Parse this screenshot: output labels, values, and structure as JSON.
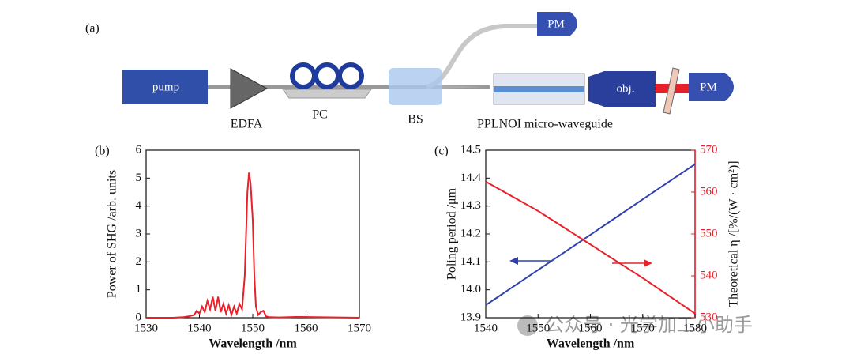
{
  "diagram": {
    "label": "(a)",
    "pump": "pump",
    "edfa": "EDFA",
    "pc": "PC",
    "bs": "BS",
    "waveguide": "PPLNOI micro-waveguide",
    "pm_top": "PM",
    "objective": "obj.",
    "pm_right": "PM"
  },
  "chart_data": [
    {
      "type": "line",
      "label": "(b)",
      "xlabel": "Wavelength /nm",
      "ylabel": "Power of SHG /arb. units",
      "x": [
        1530,
        1535,
        1537,
        1538,
        1539,
        1539.5,
        1540,
        1540.5,
        1541,
        1541.5,
        1542,
        1542.5,
        1543,
        1543.5,
        1544,
        1544.5,
        1545,
        1545.5,
        1546,
        1546.5,
        1547,
        1547.5,
        1548,
        1548.5,
        1549,
        1549.3,
        1549.6,
        1550,
        1550.3,
        1550.6,
        1551,
        1551.5,
        1552,
        1552.5,
        1553,
        1555,
        1558,
        1570
      ],
      "series": [
        {
          "color": "#e8202a",
          "values": [
            0,
            0,
            0.02,
            0.05,
            0.1,
            0.25,
            0.15,
            0.4,
            0.2,
            0.6,
            0.3,
            0.75,
            0.25,
            0.75,
            0.2,
            0.5,
            0.15,
            0.45,
            0.1,
            0.4,
            0.15,
            0.5,
            0.3,
            1.5,
            4.5,
            5.2,
            4.8,
            3.5,
            1.5,
            0.4,
            0.1,
            0.2,
            0.25,
            0.05,
            0.02,
            0.01,
            0.03,
            0
          ]
        }
      ],
      "xlim": [
        1530,
        1570
      ],
      "xticks": [
        1530,
        1540,
        1550,
        1560,
        1570
      ],
      "ylim": [
        0,
        6
      ],
      "yticks": [
        0,
        1,
        2,
        3,
        4,
        5,
        6
      ]
    },
    {
      "type": "line",
      "label": "(c)",
      "xlabel": "Wavelength /nm",
      "ylabel": "Poling period /μm",
      "y2label": "Theoretical η /[%/(W · cm²)]",
      "x": [
        1540,
        1550,
        1560,
        1570,
        1580
      ],
      "series": [
        {
          "color": "#3040b0",
          "values": [
            13.945,
            14.071,
            14.197,
            14.324,
            14.45
          ]
        },
        {
          "color": "#e8202a",
          "axis": "y2",
          "values": [
            562.5,
            555.5,
            547.5,
            539.5,
            531
          ]
        }
      ],
      "xlim": [
        1540,
        1580
      ],
      "xticks": [
        1540,
        1550,
        1560,
        1570,
        1580
      ],
      "ylim": [
        13.9,
        14.5
      ],
      "yticks": [
        13.9,
        {
          "value": 14,
          "label": "14.0"
        },
        14.1,
        14.2,
        14.3,
        14.4,
        14.5
      ],
      "y2lim": [
        530,
        570
      ],
      "y2ticks": [
        530,
        540,
        550,
        560,
        570
      ]
    }
  ],
  "watermark": "公众号 · 光学加工小助手"
}
